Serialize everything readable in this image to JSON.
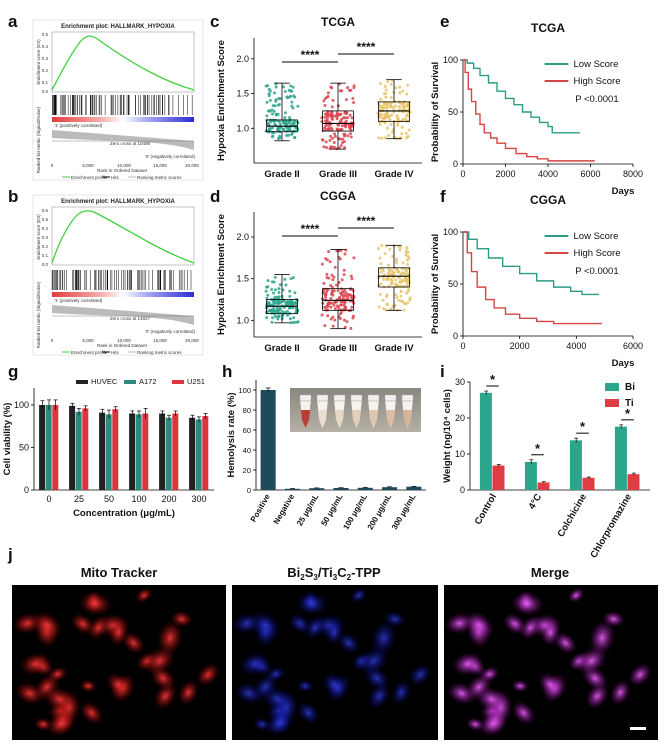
{
  "panel_labels": {
    "a": "a",
    "b": "b",
    "c": "c",
    "d": "d",
    "e": "e",
    "f": "f",
    "g": "g",
    "h": "h",
    "i": "i",
    "j": "j"
  },
  "gsea": {
    "a": {
      "title": "Enrichment plot: HALLMARK_HYPOXIA",
      "ylabel_top": "Enrichment score (ES)",
      "ylabel_bottom": "Ranked list metric (Signal2Noise)",
      "xlabel": "Rank in Ordered Dataset",
      "zero_cross": "Zero cross at 10498",
      "pos_label": "'1' (positively correlated)",
      "neg_label": "'0' (negatively correlated)",
      "legend": [
        "Enrichment profile",
        "Hits",
        "Ranking metric scores"
      ],
      "x_ticks": [
        "0",
        "5,000",
        "10,000",
        "15,000",
        "20,000"
      ],
      "y_ticks": [
        "0.5",
        "0.4",
        "0.3",
        "0.2",
        "0.1",
        "0.0"
      ]
    },
    "b": {
      "title": "Enrichment plot: HALLMARK_HYPOXIA",
      "ylabel_top": "Enrichment score (ES)",
      "ylabel_bottom": "Ranked list metric (Signal2Noise)",
      "xlabel": "Rank in Ordered Dataset",
      "zero_cross": "Zero cross at 14827",
      "pos_label": "'1' (positively correlated)",
      "neg_label": "'0' (negatively correlated)",
      "legend": [
        "Enrichment profile",
        "Hits",
        "Ranking metric scores"
      ],
      "x_ticks": [
        "0",
        "5,000",
        "10,000",
        "15,000",
        "20,000"
      ],
      "y_ticks": [
        "0.6",
        "0.5",
        "0.4",
        "0.3",
        "0.2",
        "0.1",
        "0.0"
      ]
    }
  },
  "chart_data": [
    {
      "id": "c",
      "type": "box",
      "title": "TCGA",
      "ylabel": "Hypoxia Enrichment Score",
      "categories": [
        "Grade II",
        "Grade III",
        "Grade IV"
      ],
      "stats": [
        {
          "min": 0.82,
          "q1": 0.95,
          "median": 1.03,
          "q3": 1.12,
          "max": 1.65
        },
        {
          "min": 0.7,
          "q1": 0.96,
          "median": 1.07,
          "q3": 1.25,
          "max": 1.65
        },
        {
          "min": 0.85,
          "q1": 1.1,
          "median": 1.25,
          "q3": 1.38,
          "max": 1.7
        }
      ],
      "ylim": [
        0.5,
        2.3
      ],
      "yticks": [
        1.0,
        1.5,
        2.0
      ],
      "ytick_labels": [
        "1.0",
        "1.5",
        "2.0"
      ],
      "colors": [
        "#2ca58d",
        "#d94650",
        "#e8c46a"
      ],
      "sig": [
        {
          "from": 0,
          "to": 1,
          "label": "****"
        },
        {
          "from": 1,
          "to": 2,
          "label": "****"
        }
      ]
    },
    {
      "id": "d",
      "type": "box",
      "title": "CGGA",
      "ylabel": "Hypoxia Enrichment Score",
      "categories": [
        "Grade II",
        "Grade III",
        "Grade IV"
      ],
      "stats": [
        {
          "min": 0.97,
          "q1": 1.08,
          "median": 1.17,
          "q3": 1.25,
          "max": 1.55
        },
        {
          "min": 0.9,
          "q1": 1.12,
          "median": 1.24,
          "q3": 1.38,
          "max": 1.85
        },
        {
          "min": 1.12,
          "q1": 1.4,
          "median": 1.53,
          "q3": 1.63,
          "max": 1.9
        }
      ],
      "ylim": [
        0.8,
        2.3
      ],
      "yticks": [
        1.0,
        1.5,
        2.0
      ],
      "ytick_labels": [
        "1.0",
        "1.5",
        "2.0"
      ],
      "colors": [
        "#2ca58d",
        "#d94650",
        "#e8c46a"
      ],
      "sig": [
        {
          "from": 0,
          "to": 1,
          "label": "****"
        },
        {
          "from": 1,
          "to": 2,
          "label": "****"
        }
      ]
    },
    {
      "id": "e",
      "type": "line",
      "title": "TCGA",
      "ylabel": "Probability of Survival",
      "xlabel": "Days",
      "xlim": [
        0,
        8000
      ],
      "ylim": [
        0,
        100
      ],
      "xticks": [
        0,
        2000,
        4000,
        6000,
        8000
      ],
      "yticks": [
        0,
        50,
        100
      ],
      "pvalue": "P <0.0001",
      "series": [
        {
          "name": "Low Score",
          "color": "#2b9c86",
          "x": [
            0,
            200,
            500,
            800,
            1200,
            1600,
            2000,
            2400,
            2800,
            3200,
            3600,
            4000,
            4200,
            4600,
            5500
          ],
          "y": [
            100,
            97,
            92,
            85,
            78,
            70,
            63,
            57,
            50,
            45,
            40,
            36,
            30,
            30,
            30
          ]
        },
        {
          "name": "High Score",
          "color": "#d64545",
          "x": [
            0,
            100,
            250,
            400,
            600,
            800,
            1000,
            1300,
            1600,
            2000,
            2500,
            3000,
            3500,
            4000,
            4300,
            6200
          ],
          "y": [
            100,
            88,
            72,
            60,
            48,
            38,
            30,
            25,
            20,
            15,
            10,
            7,
            5,
            3,
            3,
            3
          ]
        }
      ]
    },
    {
      "id": "f",
      "type": "line",
      "title": "CGGA",
      "ylabel": "Probability of Survival",
      "xlabel": "Days",
      "xlim": [
        0,
        6000
      ],
      "ylim": [
        0,
        100
      ],
      "xticks": [
        0,
        2000,
        4000,
        6000
      ],
      "yticks": [
        0,
        50,
        100
      ],
      "pvalue": "P <0.0001",
      "series": [
        {
          "name": "Low Score",
          "color": "#2b9c86",
          "x": [
            0,
            200,
            500,
            900,
            1400,
            2000,
            2600,
            3200,
            3800,
            4200,
            4800
          ],
          "y": [
            100,
            93,
            84,
            75,
            67,
            60,
            53,
            47,
            43,
            40,
            40
          ]
        },
        {
          "name": "High Score",
          "color": "#d64545",
          "x": [
            0,
            150,
            300,
            500,
            800,
            1100,
            1500,
            2000,
            2600,
            3200,
            4000,
            4900
          ],
          "y": [
            100,
            80,
            62,
            47,
            35,
            27,
            21,
            17,
            14,
            12,
            12,
            12
          ]
        }
      ]
    },
    {
      "id": "g",
      "type": "bar",
      "ylabel": "Cell viability (%)",
      "xlabel": "Concentration (μg/mL)",
      "categories": [
        "0",
        "25",
        "50",
        "100",
        "200",
        "300"
      ],
      "ylim": [
        0,
        120
      ],
      "yticks": [
        0,
        50,
        100
      ],
      "series": [
        {
          "name": "HUVEC",
          "color": "#222222",
          "values": [
            100,
            99,
            91,
            90,
            90,
            85
          ],
          "err": [
            5,
            3,
            4,
            3,
            3,
            3
          ]
        },
        {
          "name": "A172",
          "color": "#2b8c7e",
          "values": [
            100,
            92,
            89,
            89,
            85,
            83
          ],
          "err": [
            6,
            4,
            5,
            4,
            3,
            3
          ]
        },
        {
          "name": "U251",
          "color": "#d9363e",
          "values": [
            100,
            96,
            95,
            90,
            90,
            87
          ],
          "err": [
            6,
            3,
            3,
            6,
            3,
            3
          ]
        }
      ]
    },
    {
      "id": "h",
      "type": "bar",
      "ylabel": "Hemolysis rate (%)",
      "categories": [
        "Positive",
        "Negative",
        "25 μg/mL",
        "50 μg/mL",
        "100 μg/mL",
        "200 μg/mL",
        "300 μg/mL"
      ],
      "ylim": [
        0,
        110
      ],
      "yticks": [
        0,
        20,
        40,
        60,
        80,
        100
      ],
      "color": "#1f4a5a",
      "values": [
        100,
        1.2,
        1.8,
        2.0,
        2.2,
        2.8,
        3.3
      ],
      "err": [
        2,
        0.3,
        0.3,
        0.3,
        0.4,
        0.4,
        0.4
      ]
    },
    {
      "id": "i",
      "type": "bar",
      "ylabel": "Weight (ng/10⁴ cells)",
      "categories": [
        "Control",
        "4°C",
        "Colchicine",
        "Chlorpromazine"
      ],
      "ylim": [
        0,
        30
      ],
      "yticks": [
        0,
        10,
        20,
        30
      ],
      "series": [
        {
          "name": "Bi",
          "color": "#2ca58d",
          "values": [
            27,
            7.8,
            13.8,
            17.6
          ],
          "err": [
            0.5,
            0.6,
            0.6,
            0.5
          ]
        },
        {
          "name": "Ti",
          "color": "#e03c44",
          "values": [
            6.8,
            2.1,
            3.4,
            4.4
          ],
          "err": [
            0.3,
            0.2,
            0.2,
            0.3
          ]
        }
      ],
      "sig": [
        "*",
        "*",
        "*",
        "*"
      ]
    }
  ],
  "microscopy": {
    "label_1": "Mito Tracker",
    "label_2_base1": "Bi",
    "label_2_sub1": "2",
    "label_2_base2": "S",
    "label_2_sub2": "3",
    "label_2_base3": "/Ti",
    "label_2_sub3": "3",
    "label_2_base4": "C",
    "label_2_sub4": "2",
    "label_2_base5": "-TPP",
    "label_3": "Merge"
  }
}
